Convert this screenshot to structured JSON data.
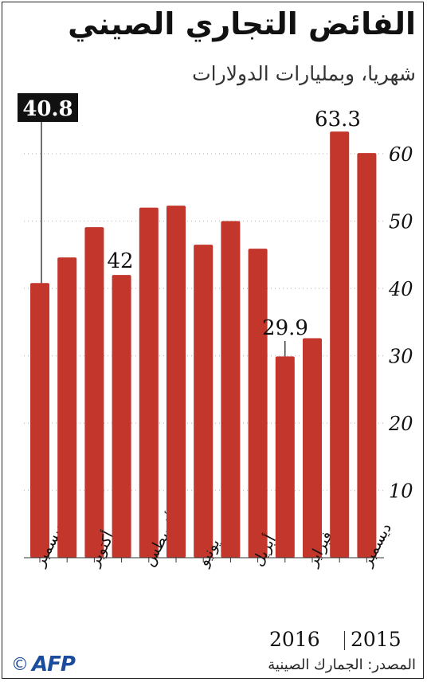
{
  "header": {
    "title": "الفائض التجاري الصيني",
    "subtitle": "شهريا، وبمليارات الدولارات"
  },
  "footer": {
    "source": "المصدر: الجمارك الصينية",
    "year_left": "2016",
    "year_right": "2015",
    "copyright": "©",
    "logo_text": "AFP"
  },
  "colors": {
    "bar": "#c2362b",
    "grid": "#c8c8c8",
    "text": "#111111",
    "label_box": "#111111",
    "label_box_text": "#ffffff",
    "logo": "#1b4c9e"
  },
  "chart_data": {
    "type": "bar",
    "title": "الفائض التجاري الصيني",
    "subtitle": "شهريا، وبمليارات الدولارات",
    "ylim": [
      0,
      70
    ],
    "yticks": [
      10,
      20,
      30,
      40,
      50,
      60
    ],
    "y_axis_side": "right",
    "grid": true,
    "order": "right-to-left (most recent on left)",
    "bars": [
      {
        "month": "ديسمبر",
        "year": "2016",
        "value": 40.8
      },
      {
        "month": "",
        "year": "2016",
        "value": 44.6
      },
      {
        "month": "أكتوبر",
        "year": "2016",
        "value": 49.1
      },
      {
        "month": "",
        "year": "2016",
        "value": 42.0
      },
      {
        "month": "أغسطس",
        "year": "2016",
        "value": 52.0
      },
      {
        "month": "",
        "year": "2016",
        "value": 52.3
      },
      {
        "month": "يونيو",
        "year": "2016",
        "value": 46.5
      },
      {
        "month": "",
        "year": "2016",
        "value": 50.0
      },
      {
        "month": "أبريل",
        "year": "2016",
        "value": 45.9
      },
      {
        "month": "",
        "year": "2016",
        "value": 29.9
      },
      {
        "month": "فبراير",
        "year": "2016",
        "value": 32.6
      },
      {
        "month": "",
        "year": "2016",
        "value": 63.3
      },
      {
        "month": "ديسمبر",
        "year": "2015",
        "value": 60.1
      }
    ],
    "annotations": [
      {
        "bar_index": 0,
        "text": "40.8",
        "style": "boxed"
      },
      {
        "bar_index": 3,
        "text": "42",
        "style": "plain"
      },
      {
        "bar_index": 9,
        "text": "29.9",
        "style": "plain"
      },
      {
        "bar_index": 11,
        "text": "63.3",
        "style": "plain"
      }
    ]
  }
}
